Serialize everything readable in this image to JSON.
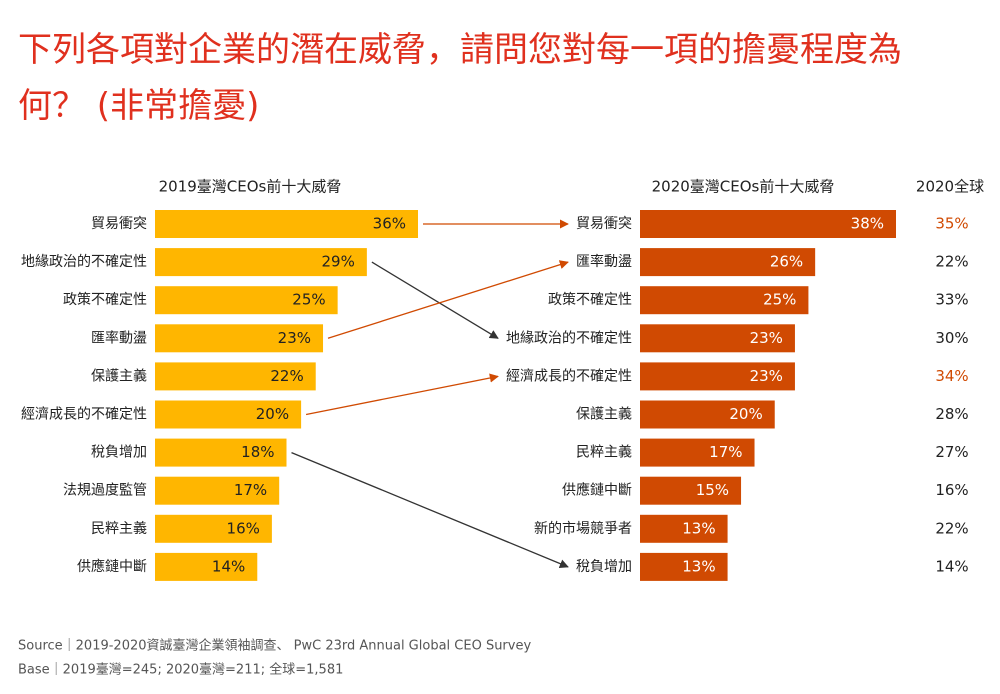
{
  "title": "下列各項對企業的潛在威脅，請問您對每一項的擔憂程度為何？ (非常擔憂)",
  "chart_data": [
    {
      "type": "bar",
      "title": "2019臺灣CEOs前十大威脅",
      "color": "#ffb600",
      "label_color": "#222222",
      "categories": [
        "貿易衝突",
        "地緣政治的不確定性",
        "政策不確定性",
        "匯率動盪",
        "保護主義",
        "經濟成長的不確定性",
        "稅負增加",
        "法規過度監管",
        "民粹主義",
        "供應鏈中斷"
      ],
      "values": [
        36,
        29,
        25,
        23,
        22,
        20,
        18,
        17,
        16,
        14
      ],
      "value_labels": [
        "36%",
        "29%",
        "25%",
        "23%",
        "22%",
        "20%",
        "18%",
        "17%",
        "16%",
        "14%"
      ]
    },
    {
      "type": "bar",
      "title": "2020臺灣CEOs前十大威脅",
      "color": "#d04a02",
      "label_color": "#ffffff",
      "categories": [
        "貿易衝突",
        "匯率動盪",
        "政策不確定性",
        "地緣政治的不確定性",
        "經濟成長的不確定性",
        "保護主義",
        "民粹主義",
        "供應鏈中斷",
        "新的市場競爭者",
        "稅負增加"
      ],
      "values": [
        38,
        26,
        25,
        23,
        23,
        20,
        17,
        15,
        13,
        13
      ],
      "value_labels": [
        "38%",
        "26%",
        "25%",
        "23%",
        "23%",
        "20%",
        "17%",
        "15%",
        "13%",
        "13%"
      ],
      "global": {
        "title": "2020全球",
        "values": [
          35,
          22,
          33,
          30,
          34,
          28,
          27,
          16,
          22,
          14
        ],
        "value_labels": [
          "35%",
          "22%",
          "33%",
          "30%",
          "34%",
          "28%",
          "27%",
          "16%",
          "22%",
          "14%"
        ],
        "colors": [
          "#d04a02",
          "#222222",
          "#222222",
          "#222222",
          "#d04a02",
          "#222222",
          "#222222",
          "#222222",
          "#222222",
          "#222222"
        ]
      }
    }
  ],
  "arrows": [
    {
      "from": 0,
      "to": 0,
      "color": "#d04a02"
    },
    {
      "from": 1,
      "to": 3,
      "color": "#333333"
    },
    {
      "from": 3,
      "to": 1,
      "color": "#d04a02"
    },
    {
      "from": 5,
      "to": 4,
      "color": "#d04a02"
    },
    {
      "from": 6,
      "to": 9,
      "color": "#333333"
    }
  ],
  "notes": {
    "source": "Source｜2019-2020資誠臺灣企業領袖調查、 PwC 23rd Annual Global CEO Survey",
    "base": "Base｜2019臺灣=245; 2020臺灣=211; 全球=1,581"
  }
}
